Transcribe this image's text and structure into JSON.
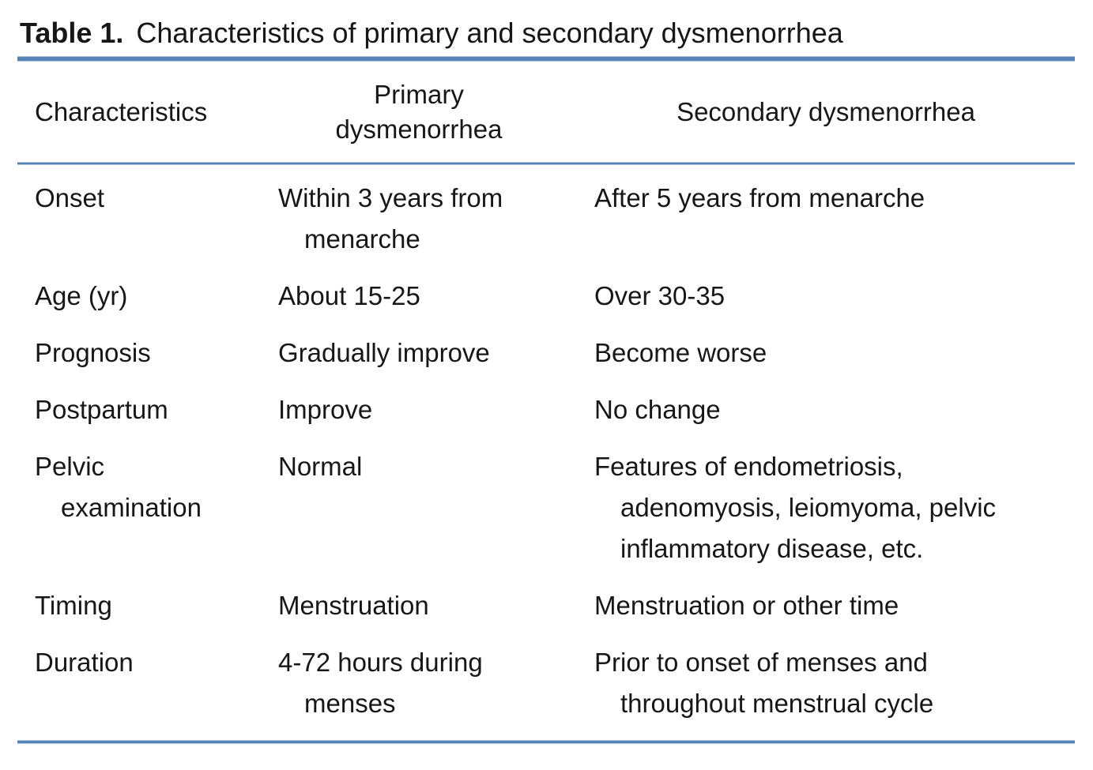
{
  "title": {
    "label": "Table 1.",
    "caption": "Characteristics of primary and secondary dysmenorrhea"
  },
  "colors": {
    "rule_blue": "#5884b5",
    "rule_blue_light": "#aec7e0",
    "text_color": "#171717"
  },
  "table": {
    "headers": {
      "characteristics": "Characteristics",
      "primary": "Primary dysmenorrhea",
      "secondary": "Secondary dysmenorrhea"
    },
    "rows": [
      {
        "characteristic": [
          "Onset"
        ],
        "primary": [
          "Within 3 years from",
          "menarche"
        ],
        "secondary": [
          "After 5 years from menarche"
        ]
      },
      {
        "characteristic": [
          "Age (yr)"
        ],
        "primary": [
          "About 15-25"
        ],
        "secondary": [
          "Over 30-35"
        ]
      },
      {
        "characteristic": [
          "Prognosis"
        ],
        "primary": [
          "Gradually improve"
        ],
        "secondary": [
          "Become worse"
        ]
      },
      {
        "characteristic": [
          "Postpartum"
        ],
        "primary": [
          "Improve"
        ],
        "secondary": [
          "No change"
        ]
      },
      {
        "characteristic": [
          "Pelvic",
          "examination"
        ],
        "primary": [
          "Normal"
        ],
        "secondary": [
          "Features of endometriosis,",
          "adenomyosis, leiomyoma, pelvic",
          "inflammatory disease, etc."
        ]
      },
      {
        "characteristic": [
          "Timing"
        ],
        "primary": [
          "Menstruation"
        ],
        "secondary": [
          "Menstruation or other time"
        ]
      },
      {
        "characteristic": [
          "Duration"
        ],
        "primary": [
          "4-72 hours during",
          "menses"
        ],
        "secondary": [
          "Prior to onset of menses and",
          "throughout menstrual cycle"
        ]
      }
    ]
  }
}
